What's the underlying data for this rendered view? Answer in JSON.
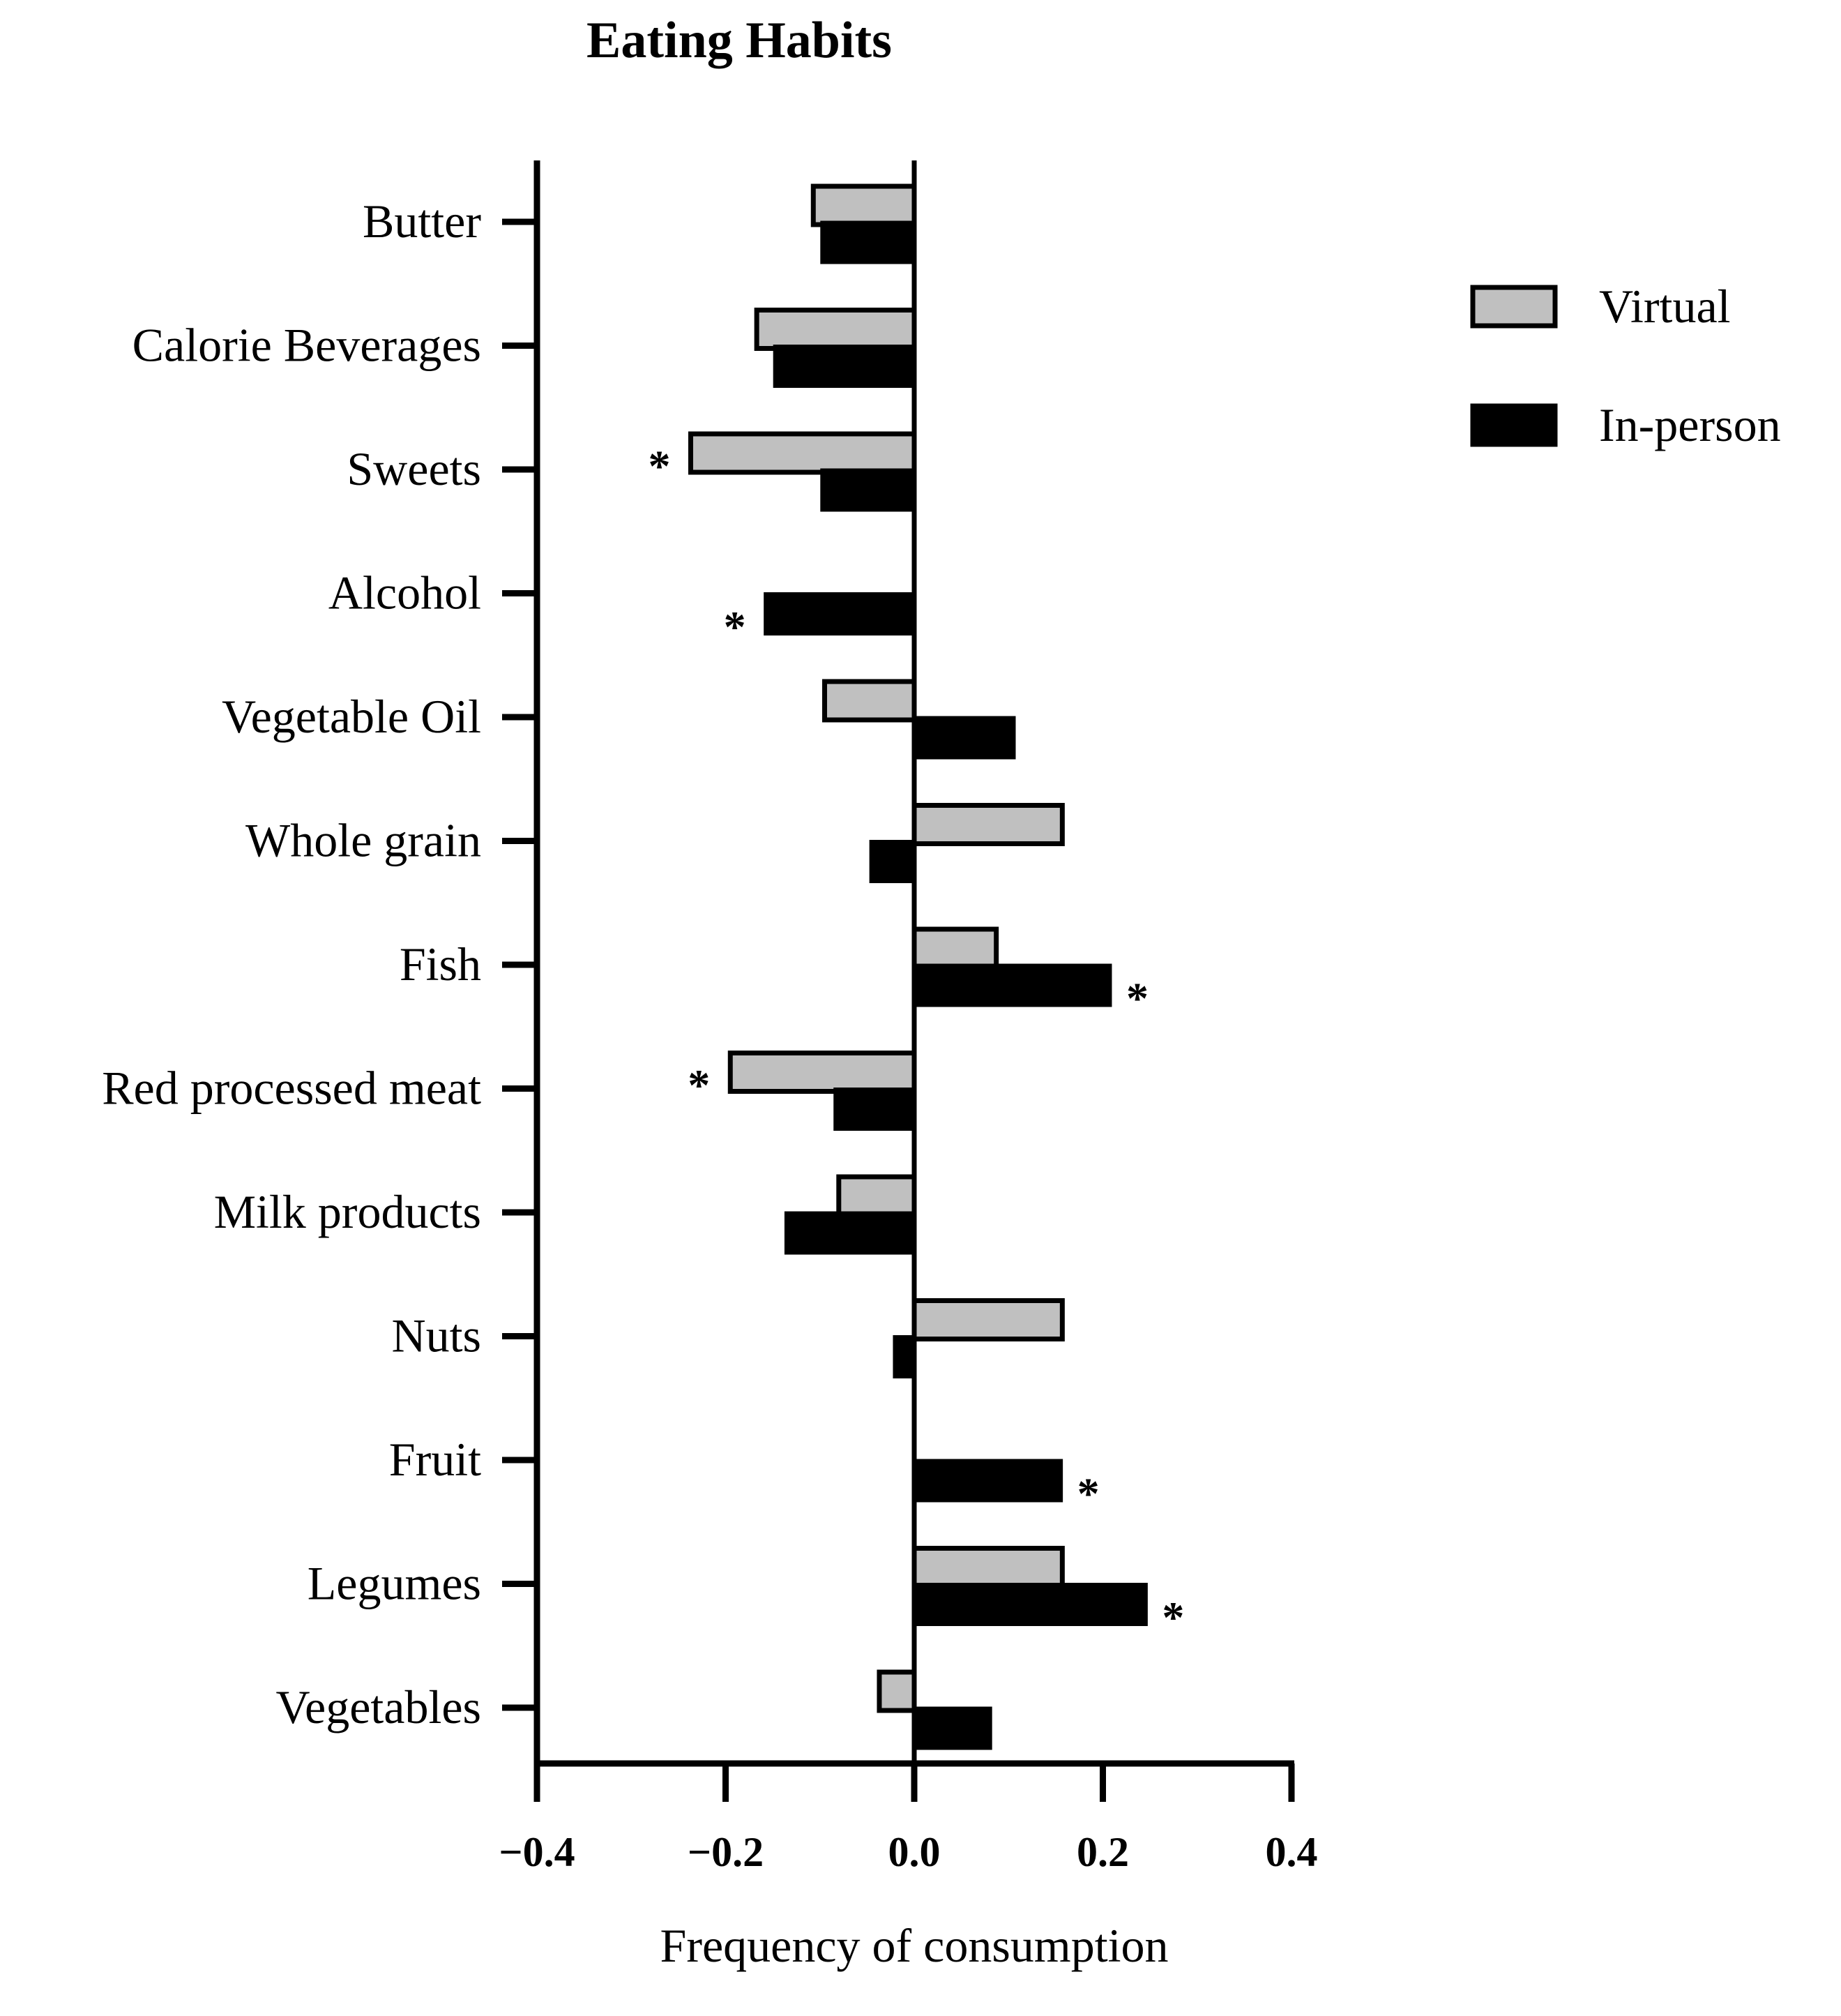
{
  "chart_data": {
    "type": "bar",
    "orientation": "horizontal",
    "title": "Eating Habits",
    "xlabel": "Frequency of consumption",
    "ylabel": "",
    "xlim": [
      -0.4,
      0.4
    ],
    "xticks": [
      "−0.4",
      "−0.2",
      "0.0",
      "0.2",
      "0.4"
    ],
    "xtick_values": [
      -0.4,
      -0.2,
      0.0,
      0.2,
      0.4
    ],
    "categories": [
      "Butter",
      "Calorie Beverages",
      "Sweets",
      "Alcohol",
      "Vegetable Oil",
      "Whole grain",
      "Fish",
      "Red processed meat",
      "Milk products",
      "Nuts",
      "Fruit",
      "Legumes",
      "Vegetables"
    ],
    "series": [
      {
        "name": "Virtual",
        "color": "#c0c0c0",
        "values": [
          -0.107,
          -0.167,
          -0.237,
          0.0,
          -0.095,
          0.157,
          0.087,
          -0.195,
          -0.08,
          0.157,
          0.0,
          0.157,
          -0.037
        ]
      },
      {
        "name": "In-person",
        "color": "#000000",
        "values": [
          -0.097,
          -0.147,
          -0.097,
          -0.157,
          0.105,
          -0.045,
          0.207,
          -0.083,
          -0.135,
          -0.02,
          0.155,
          0.245,
          0.08
        ]
      }
    ],
    "significance_marker": "*",
    "significant": [
      {
        "category": "Sweets",
        "series": "Virtual"
      },
      {
        "category": "Alcohol",
        "series": "In-person"
      },
      {
        "category": "Fish",
        "series": "In-person"
      },
      {
        "category": "Red processed meat",
        "series": "Virtual"
      },
      {
        "category": "Fruit",
        "series": "In-person"
      },
      {
        "category": "Legumes",
        "series": "In-person"
      }
    ],
    "legend_position": "top-right",
    "grid": false
  }
}
